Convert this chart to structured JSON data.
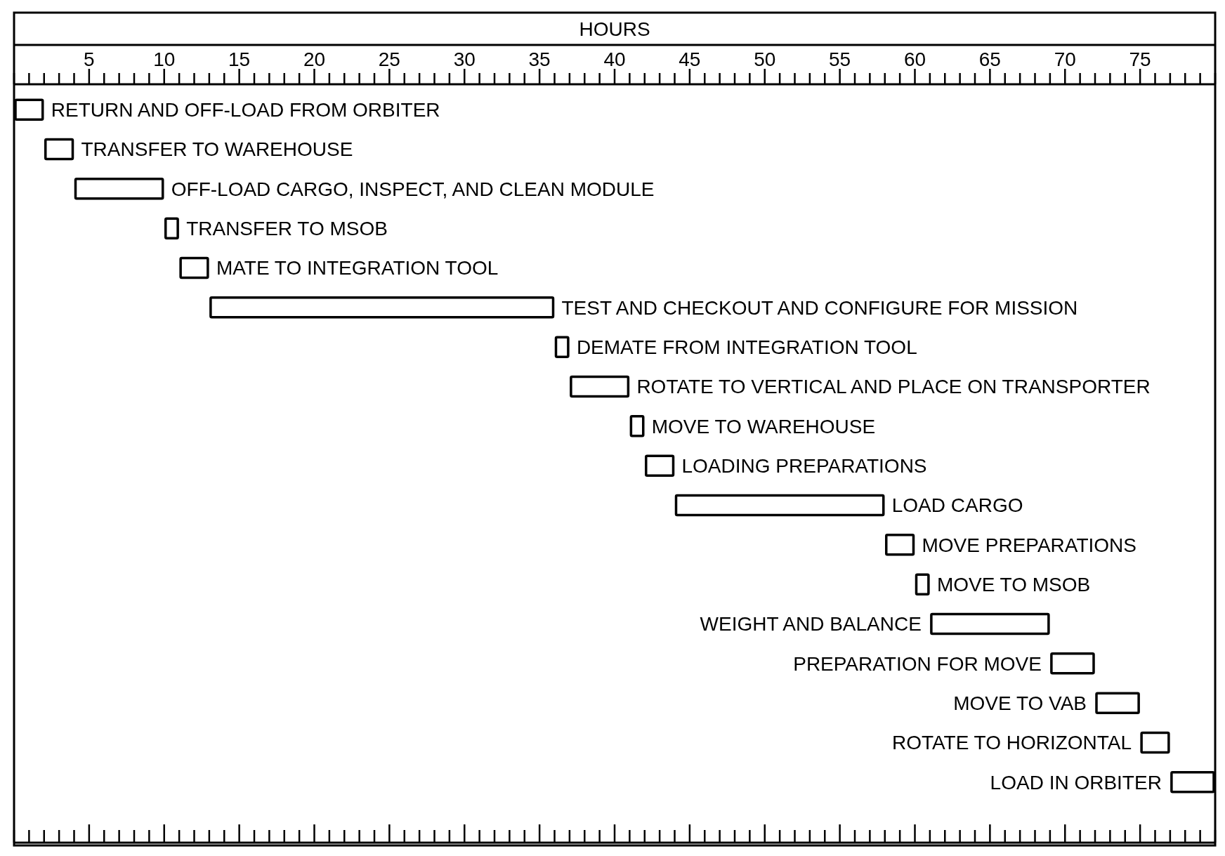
{
  "chart_data": {
    "type": "bar",
    "orientation": "horizontal",
    "xlabel": "HOURS",
    "categories": [
      "RETURN AND OFF-LOAD FROM ORBITER",
      "TRANSFER TO WAREHOUSE",
      "OFF-LOAD CARGO, INSPECT, AND CLEAN MODULE",
      "TRANSFER TO MSOB",
      "MATE TO INTEGRATION TOOL",
      "TEST AND CHECKOUT AND CONFIGURE FOR MISSION",
      "DEMATE FROM INTEGRATION TOOL",
      "ROTATE TO VERTICAL AND PLACE ON TRANSPORTER",
      "MOVE TO WAREHOUSE",
      "LOADING PREPARATIONS",
      "LOAD CARGO",
      "MOVE PREPARATIONS",
      "MOVE TO MSOB",
      "WEIGHT AND BALANCE",
      "PREPARATION FOR MOVE",
      "MOVE TO VAB",
      "ROTATE TO HORIZONTAL",
      "LOAD IN ORBITER"
    ],
    "base": [
      0,
      2,
      4,
      10,
      11,
      13,
      36,
      37,
      41,
      42,
      44,
      58,
      60,
      61,
      69,
      72,
      75,
      77
    ],
    "values": [
      2,
      2,
      6,
      1,
      2,
      23,
      1,
      4,
      1,
      2,
      14,
      2,
      1,
      8,
      3,
      3,
      2,
      3
    ],
    "color": "#000000",
    "xlim": [
      0,
      80
    ],
    "xticks": [
      {
        "value": 0,
        "label": null
      },
      {
        "value": 1,
        "label": null
      },
      {
        "value": 2,
        "label": null
      },
      {
        "value": 3,
        "label": null
      },
      {
        "value": 4,
        "label": null
      },
      5,
      {
        "value": 6,
        "label": null
      },
      {
        "value": 7,
        "label": null
      },
      {
        "value": 8,
        "label": null
      },
      {
        "value": 9,
        "label": null
      },
      10,
      {
        "value": 11,
        "label": null
      },
      {
        "value": 12,
        "label": null
      },
      {
        "value": 13,
        "label": null
      },
      {
        "value": 14,
        "label": null
      },
      15,
      {
        "value": 16,
        "label": null
      },
      {
        "value": 17,
        "label": null
      },
      {
        "value": 18,
        "label": null
      },
      {
        "value": 19,
        "label": null
      },
      20,
      {
        "value": 21,
        "label": null
      },
      {
        "value": 22,
        "label": null
      },
      {
        "value": 23,
        "label": null
      },
      {
        "value": 24,
        "label": null
      },
      25,
      {
        "value": 26,
        "label": null
      },
      {
        "value": 27,
        "label": null
      },
      {
        "value": 28,
        "label": null
      },
      {
        "value": 29,
        "label": null
      },
      30,
      {
        "value": 31,
        "label": null
      },
      {
        "value": 32,
        "label": null
      },
      {
        "value": 33,
        "label": null
      },
      {
        "value": 34,
        "label": null
      },
      35,
      {
        "value": 36,
        "label": null
      },
      {
        "value": 37,
        "label": null
      },
      {
        "value": 38,
        "label": null
      },
      {
        "value": 39,
        "label": null
      },
      40,
      {
        "value": 41,
        "label": null
      },
      {
        "value": 42,
        "label": null
      },
      {
        "value": 43,
        "label": null
      },
      {
        "value": 44,
        "label": null
      },
      45,
      {
        "value": 46,
        "label": null
      },
      {
        "value": 47,
        "label": null
      },
      {
        "value": 48,
        "label": null
      },
      {
        "value": 49,
        "label": null
      },
      50,
      {
        "value": 51,
        "label": null
      },
      {
        "value": 52,
        "label": null
      },
      {
        "value": 53,
        "label": null
      },
      {
        "value": 54,
        "label": null
      },
      55,
      {
        "value": 56,
        "label": null
      },
      {
        "value": 57,
        "label": null
      },
      {
        "value": 58,
        "label": null
      },
      {
        "value": 59,
        "label": null
      },
      60,
      {
        "value": 61,
        "label": null
      },
      {
        "value": 62,
        "label": null
      },
      {
        "value": 63,
        "label": null
      },
      {
        "value": 64,
        "label": null
      },
      65,
      {
        "value": 66,
        "label": null
      },
      {
        "value": 67,
        "label": null
      },
      {
        "value": 68,
        "label": null
      },
      {
        "value": 69,
        "label": null
      },
      70,
      {
        "value": 71,
        "label": null
      },
      {
        "value": 72,
        "label": null
      },
      {
        "value": 73,
        "label": null
      },
      {
        "value": 74,
        "label": null
      },
      75,
      {
        "value": 76,
        "label": null
      },
      {
        "value": 77,
        "label": null
      },
      {
        "value": 78,
        "label": null
      },
      {
        "value": 79,
        "label": null
      },
      {
        "value": 80,
        "label": null
      }
    ],
    "grid": false
  }
}
